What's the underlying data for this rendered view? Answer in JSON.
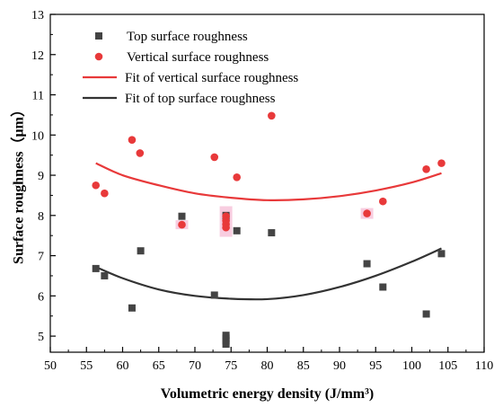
{
  "chart_data": {
    "type": "scatter",
    "xlabel": "Volumetric energy density (J/mm³)",
    "ylabel": "Surface roughness（μm）",
    "xlim": [
      50,
      110
    ],
    "ylim": [
      4.6,
      13
    ],
    "x_ticks": [
      50,
      55,
      60,
      65,
      70,
      75,
      80,
      85,
      90,
      95,
      100,
      105,
      110
    ],
    "y_ticks": [
      5,
      6,
      7,
      8,
      9,
      10,
      11,
      12,
      13
    ],
    "grid": false,
    "legend_position": "top-left",
    "colors": {
      "top": "#444444",
      "vertical": "#e8393a",
      "highlight": "#f2a4c6"
    },
    "series": [
      {
        "name": "Top surface roughness",
        "marker": "square",
        "color": "#444444",
        "points": [
          [
            56.3,
            6.68
          ],
          [
            57.5,
            6.5
          ],
          [
            61.3,
            5.7
          ],
          [
            62.5,
            7.12
          ],
          [
            68.2,
            7.98
          ],
          [
            72.7,
            6.02
          ],
          [
            74.3,
            8.0
          ],
          [
            74.3,
            7.95
          ],
          [
            74.3,
            5.02
          ],
          [
            74.3,
            4.95
          ],
          [
            74.3,
            4.88
          ],
          [
            74.3,
            4.8
          ],
          [
            75.8,
            7.62
          ],
          [
            80.6,
            7.57
          ],
          [
            93.8,
            6.8
          ],
          [
            96.0,
            6.22
          ],
          [
            102.0,
            5.55
          ],
          [
            104.1,
            7.05
          ]
        ]
      },
      {
        "name": "Vertical surface roughness",
        "marker": "circle",
        "color": "#e8393a",
        "points": [
          [
            56.3,
            8.75
          ],
          [
            57.5,
            8.55
          ],
          [
            61.3,
            9.88
          ],
          [
            62.4,
            9.55
          ],
          [
            68.2,
            7.77
          ],
          [
            72.7,
            9.45
          ],
          [
            74.3,
            7.98
          ],
          [
            74.3,
            7.87
          ],
          [
            74.3,
            7.78
          ],
          [
            74.3,
            7.7
          ],
          [
            75.8,
            8.95
          ],
          [
            80.6,
            10.48
          ],
          [
            93.8,
            8.05
          ],
          [
            96.0,
            8.35
          ],
          [
            102.0,
            9.15
          ],
          [
            104.1,
            9.3
          ]
        ]
      },
      {
        "name": "Fit of vertical surface roughness",
        "type": "line",
        "color": "#e8393a",
        "x": [
          56.3,
          60,
          65,
          70,
          75,
          80,
          85,
          90,
          95,
          100,
          104.1
        ],
        "y": [
          9.3,
          9.0,
          8.75,
          8.55,
          8.44,
          8.38,
          8.4,
          8.48,
          8.62,
          8.82,
          9.05
        ]
      },
      {
        "name": "Fit of top surface roughness",
        "type": "line",
        "color": "#333333",
        "x": [
          56.3,
          60,
          65,
          70,
          75,
          80,
          85,
          90,
          95,
          100,
          104.1
        ],
        "y": [
          6.72,
          6.44,
          6.16,
          6.0,
          5.93,
          5.92,
          6.02,
          6.22,
          6.5,
          6.85,
          7.18
        ]
      }
    ]
  }
}
